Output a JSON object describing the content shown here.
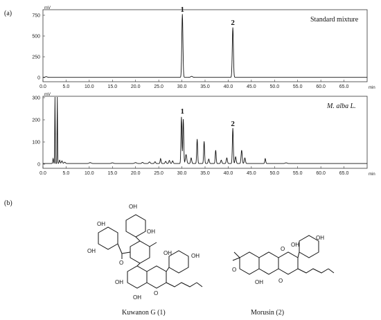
{
  "figure": {
    "panel_a": "(a)",
    "panel_b": "(b)"
  },
  "chart_data": [
    {
      "type": "line",
      "title": "Standard mixture",
      "ylabel": "mV",
      "xlabel": "min",
      "xlim": [
        0,
        70
      ],
      "ylim": [
        0,
        800
      ],
      "x_ticks": [
        0,
        5,
        10,
        15,
        20,
        25,
        30,
        35,
        40,
        45,
        50,
        55,
        60,
        65
      ],
      "x_tick_labels": [
        "0.0",
        "5.0",
        "10.0",
        "15.0",
        "20.0",
        "25.0",
        "30.0",
        "35.0",
        "40.0",
        "45.0",
        "50.0",
        "55.0",
        "60.0",
        "65.0"
      ],
      "y_ticks": [
        0,
        250,
        500,
        750
      ],
      "y_tick_labels": [
        "0",
        "250",
        "500",
        "750"
      ],
      "peak_labels": [
        {
          "text": "1",
          "x": 30.1,
          "y": 760
        },
        {
          "text": "2",
          "x": 41.0,
          "y": 600
        }
      ],
      "series": [
        {
          "peaks": [
            {
              "x": 30.1,
              "y": 760,
              "w": 0.12
            },
            {
              "x": 41.0,
              "y": 600,
              "w": 0.12
            },
            {
              "x": 32.1,
              "y": 12,
              "w": 0.2
            },
            {
              "x": 0.7,
              "y": 8,
              "w": 0.2
            }
          ],
          "baseline": 3
        }
      ]
    },
    {
      "type": "line",
      "title": "M. alba L.",
      "ylabel": "mV",
      "xlabel": "min",
      "xlim": [
        0,
        70
      ],
      "ylim": [
        0,
        300
      ],
      "x_ticks": [
        0,
        5,
        10,
        15,
        20,
        25,
        30,
        35,
        40,
        45,
        50,
        55,
        60,
        65
      ],
      "x_tick_labels": [
        "0.0",
        "5.0",
        "10.0",
        "15.0",
        "20.0",
        "25.0",
        "30.0",
        "35.0",
        "40.0",
        "45.0",
        "50.0",
        "55.0",
        "60.0",
        "65.0"
      ],
      "y_ticks": [
        0,
        100,
        200,
        300
      ],
      "y_tick_labels": [
        "0",
        "100",
        "200",
        "300"
      ],
      "peak_labels": [
        {
          "text": "1",
          "x": 30.1,
          "y": 215
        },
        {
          "text": "2",
          "x": 41.0,
          "y": 160
        }
      ],
      "series": [
        {
          "peaks": [
            {
              "x": 2.2,
              "y": 22,
              "w": 0.08
            },
            {
              "x": 2.6,
              "y": 300,
              "w": 0.05
            },
            {
              "x": 3.1,
              "y": 300,
              "w": 0.05
            },
            {
              "x": 3.6,
              "y": 15,
              "w": 0.1
            },
            {
              "x": 4.1,
              "y": 12,
              "w": 0.12
            },
            {
              "x": 4.7,
              "y": 6,
              "w": 0.15
            },
            {
              "x": 10.2,
              "y": 4,
              "w": 0.2
            },
            {
              "x": 15.0,
              "y": 3,
              "w": 0.2
            },
            {
              "x": 20.0,
              "y": 4,
              "w": 0.2
            },
            {
              "x": 21.5,
              "y": 5,
              "w": 0.15
            },
            {
              "x": 23.0,
              "y": 7,
              "w": 0.15
            },
            {
              "x": 24.2,
              "y": 8,
              "w": 0.12
            },
            {
              "x": 25.4,
              "y": 22,
              "w": 0.1
            },
            {
              "x": 26.5,
              "y": 10,
              "w": 0.12
            },
            {
              "x": 27.3,
              "y": 14,
              "w": 0.12
            },
            {
              "x": 28.0,
              "y": 12,
              "w": 0.12
            },
            {
              "x": 29.9,
              "y": 210,
              "w": 0.1
            },
            {
              "x": 30.3,
              "y": 200,
              "w": 0.1
            },
            {
              "x": 30.9,
              "y": 40,
              "w": 0.15
            },
            {
              "x": 32.0,
              "y": 25,
              "w": 0.12
            },
            {
              "x": 33.3,
              "y": 110,
              "w": 0.1
            },
            {
              "x": 34.8,
              "y": 100,
              "w": 0.1
            },
            {
              "x": 35.8,
              "y": 20,
              "w": 0.12
            },
            {
              "x": 37.3,
              "y": 60,
              "w": 0.1
            },
            {
              "x": 38.5,
              "y": 15,
              "w": 0.12
            },
            {
              "x": 39.7,
              "y": 25,
              "w": 0.12
            },
            {
              "x": 41.0,
              "y": 160,
              "w": 0.1
            },
            {
              "x": 41.6,
              "y": 30,
              "w": 0.12
            },
            {
              "x": 42.9,
              "y": 60,
              "w": 0.12
            },
            {
              "x": 43.6,
              "y": 25,
              "w": 0.12
            },
            {
              "x": 48.0,
              "y": 22,
              "w": 0.1
            },
            {
              "x": 52.5,
              "y": 3,
              "w": 0.2
            }
          ],
          "baseline": 3
        }
      ]
    }
  ],
  "compounds": [
    {
      "name": "Kuwanon G (1)"
    },
    {
      "name": "Morusin (2)"
    }
  ],
  "structure_labels": {
    "oh": "OH",
    "o": "O"
  }
}
